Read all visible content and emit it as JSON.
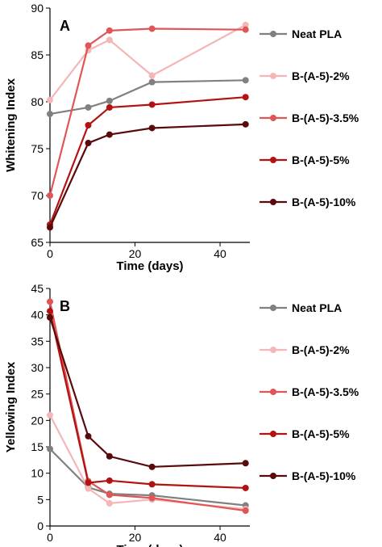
{
  "chart_data": [
    {
      "type": "line",
      "panel_label": "A",
      "xlabel": "Time (days)",
      "ylabel": "Whitening Index",
      "xlim": [
        0,
        47
      ],
      "ylim": [
        65,
        90
      ],
      "xticks": [
        0,
        20,
        40
      ],
      "yticks": [
        65,
        70,
        75,
        80,
        85,
        90
      ],
      "grid": false,
      "legend_position": "right",
      "x": [
        0,
        9,
        14,
        24,
        46
      ],
      "series": [
        {
          "name": "Neat PLA",
          "color": "#808080",
          "values": [
            78.7,
            79.4,
            80.1,
            82.1,
            82.3
          ]
        },
        {
          "name": "B-(A-5)-2%",
          "color": "#f4b6b6",
          "values": [
            80.2,
            85.5,
            86.6,
            82.8,
            88.2
          ]
        },
        {
          "name": "B-(A-5)-3.5%",
          "color": "#e05555",
          "values": [
            70.0,
            86.0,
            87.6,
            87.8,
            87.7
          ]
        },
        {
          "name": "B-(A-5)-5%",
          "color": "#b31212",
          "values": [
            66.9,
            77.5,
            79.4,
            79.7,
            80.5
          ]
        },
        {
          "name": "B-(A-5)-10%",
          "color": "#5a0a0a",
          "values": [
            66.6,
            75.6,
            76.5,
            77.2,
            77.6
          ]
        }
      ]
    },
    {
      "type": "line",
      "panel_label": "B",
      "xlabel": "Time (days)",
      "ylabel": "Yellowing Index",
      "xlim": [
        0,
        47
      ],
      "ylim": [
        0,
        45
      ],
      "xticks": [
        0,
        20,
        40
      ],
      "yticks": [
        0,
        5,
        10,
        15,
        20,
        25,
        30,
        35,
        40,
        45
      ],
      "grid": false,
      "legend_position": "right",
      "x": [
        0,
        9,
        14,
        24,
        46
      ],
      "series": [
        {
          "name": "Neat PLA",
          "color": "#808080",
          "values": [
            14.6,
            7.3,
            6.1,
            5.8,
            3.9
          ]
        },
        {
          "name": "B-(A-5)-2%",
          "color": "#f4b6b6",
          "values": [
            21.0,
            7.1,
            4.3,
            5.0,
            3.2
          ]
        },
        {
          "name": "B-(A-5)-3.5%",
          "color": "#e05555",
          "values": [
            42.5,
            8.5,
            5.9,
            5.3,
            2.9
          ]
        },
        {
          "name": "B-(A-5)-5%",
          "color": "#b31212",
          "values": [
            40.7,
            8.2,
            8.6,
            7.9,
            7.2
          ]
        },
        {
          "name": "B-(A-5)-10%",
          "color": "#5a0a0a",
          "values": [
            39.5,
            17.0,
            13.2,
            11.2,
            11.9
          ]
        }
      ]
    }
  ]
}
